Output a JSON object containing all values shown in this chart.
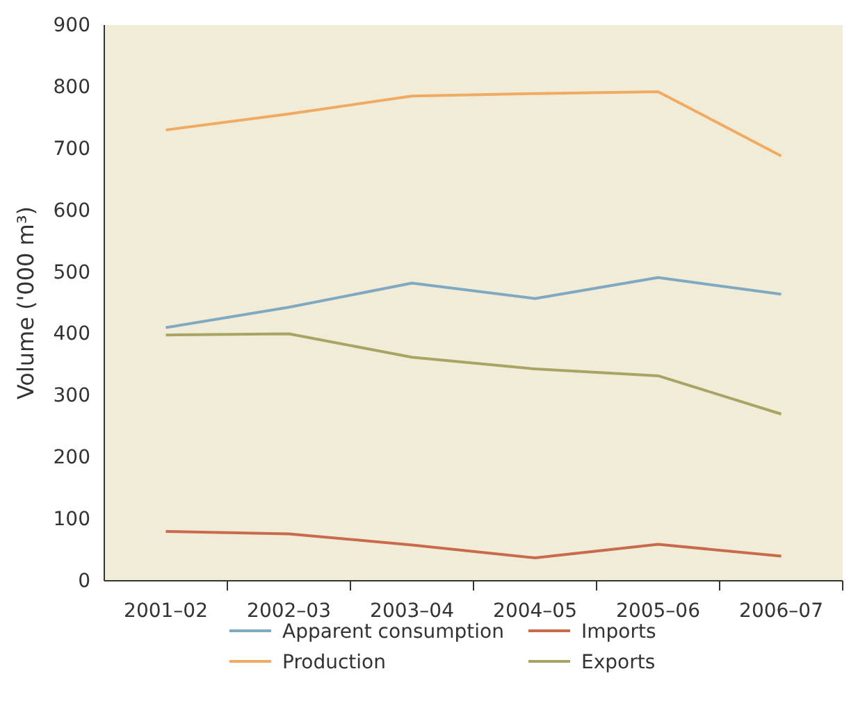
{
  "chart_data": {
    "type": "line",
    "ylabel": "Volume ('000 m³)",
    "categories": [
      "2001–02",
      "2002–03",
      "2003–04",
      "2004–05",
      "2005–06",
      "2006–07"
    ],
    "series": [
      {
        "name": "Apparent consumption",
        "color": "#7fa9c0",
        "values": [
          410,
          443,
          482,
          457,
          491,
          464
        ]
      },
      {
        "name": "Production",
        "color": "#f0aa62",
        "values": [
          730,
          756,
          785,
          789,
          792,
          688
        ]
      },
      {
        "name": "Imports",
        "color": "#c96a4c",
        "values": [
          80,
          76,
          58,
          37,
          59,
          40
        ]
      },
      {
        "name": "Exports",
        "color": "#a9a464",
        "values": [
          398,
          400,
          362,
          343,
          332,
          270
        ]
      }
    ],
    "ylim": [
      0,
      900
    ],
    "yticks": [
      0,
      100,
      200,
      300,
      400,
      500,
      600,
      700,
      800,
      900
    ],
    "grid": false,
    "legend": "bottom",
    "marker": "none",
    "line_style": "solid"
  }
}
